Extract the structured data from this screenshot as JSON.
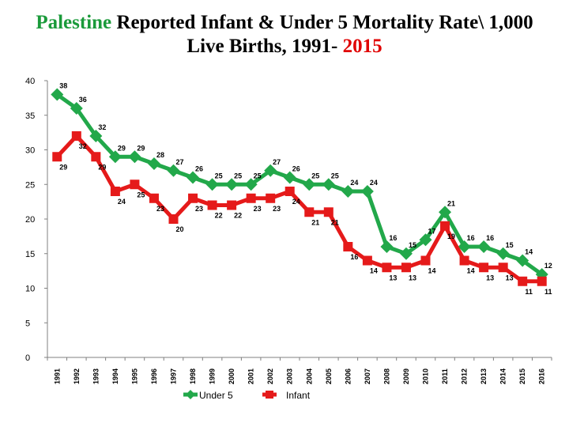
{
  "title": {
    "part1": "Palestine",
    "part2": " Reported Infant & Under 5 Mortality Rate\\ 1,000",
    "part3": "Live Births, 1991- ",
    "part4": "2015"
  },
  "colors": {
    "under5": "#22a84a",
    "infant": "#e51a1a",
    "axis": "#808080"
  },
  "chart_data": {
    "type": "line",
    "title": "Palestine Reported Infant & Under 5 Mortality Rate\\ 1,000 Live Births, 1991- 2015",
    "xlabel": "",
    "ylabel": "",
    "ylim": [
      0,
      40
    ],
    "yticks": [
      "0",
      "5",
      "10",
      "15",
      "20",
      "25",
      "30",
      "35",
      "40"
    ],
    "grid": false,
    "legend": "bottom",
    "categories": [
      "1991",
      "1992",
      "1993",
      "1994",
      "1995",
      "1996",
      "1997",
      "1998",
      "1999",
      "2000",
      "2001",
      "2002",
      "2003",
      "2004",
      "2005",
      "2006",
      "2007",
      "2008",
      "2009",
      "2010",
      "2011",
      "2012",
      "2013",
      "2014",
      "2015",
      "2016"
    ],
    "series": [
      {
        "name": "Under 5",
        "values": [
          38,
          36,
          32,
          29,
          29,
          28,
          27,
          26,
          25,
          25,
          25,
          27,
          26,
          25,
          25,
          24,
          24,
          16,
          15,
          17,
          21,
          16,
          16,
          15,
          14,
          12
        ],
        "labels": [
          "38",
          "36",
          "32",
          "29",
          "29",
          "28",
          "27",
          "26",
          "25",
          "25",
          "25",
          "27",
          "26",
          "25",
          "25",
          "24",
          "24",
          "16",
          "15",
          "17",
          "21",
          "16",
          "16",
          "15",
          "14",
          "12"
        ]
      },
      {
        "name": "Infant",
        "values": [
          29,
          32,
          29,
          24,
          25,
          23,
          20,
          23,
          22,
          22,
          23,
          23,
          24,
          21,
          21,
          16,
          14,
          13,
          13,
          14,
          19,
          14,
          13,
          13,
          11,
          11
        ],
        "labels": [
          "29",
          "32",
          "29",
          "24",
          "25",
          "23",
          "20",
          "23",
          "22",
          "22",
          "23",
          "23",
          "24",
          "21",
          "21",
          "16",
          "14",
          "13",
          "13",
          "14",
          "19",
          "14",
          "13",
          "13",
          "11",
          "11"
        ]
      }
    ]
  }
}
